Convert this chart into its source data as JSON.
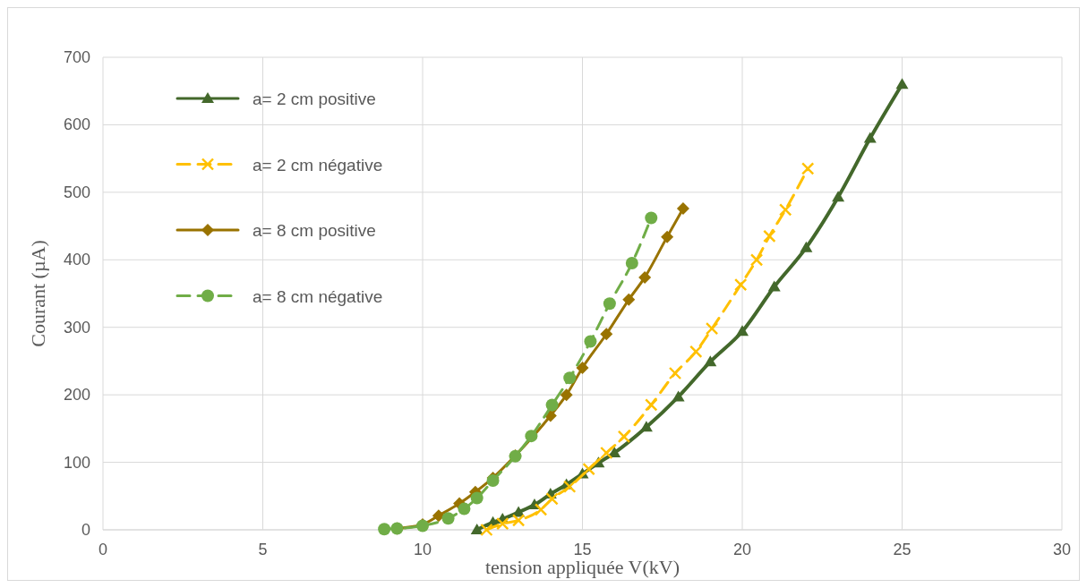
{
  "chart_data": {
    "type": "line",
    "xlabel": "tension appliquée V(kV)",
    "ylabel": "Courant (µA)",
    "xlim": [
      0,
      30
    ],
    "xticks": [
      0,
      5,
      10,
      15,
      20,
      25,
      30
    ],
    "ylim": [
      0,
      700
    ],
    "yticks": [
      0,
      100,
      200,
      300,
      400,
      500,
      600,
      700
    ],
    "grid": true,
    "legend": "top left",
    "series": [
      {
        "name": "a= 2 cm positive",
        "color": "#43682b",
        "marker": "triangle",
        "line_style": "solid",
        "x": [
          11.7,
          12.2,
          12.5,
          13,
          13.5,
          14,
          14.5,
          15,
          15.5,
          16,
          17,
          18,
          19,
          20,
          21,
          22,
          23,
          24,
          25
        ],
        "values": [
          0,
          11,
          16,
          26,
          37,
          53,
          67,
          83,
          99,
          114,
          152,
          197,
          249,
          294,
          360,
          418,
          493,
          580,
          660
        ]
      },
      {
        "name": "a= 2 cm négative",
        "color": "#ffc000",
        "marker": "cross",
        "line_style": "dashed",
        "x": [
          12,
          12.5,
          13,
          13.7,
          14.05,
          14.6,
          15.2,
          15.75,
          16.3,
          17.15,
          17.9,
          18.55,
          19.05,
          19.95,
          20.45,
          20.85,
          21.35,
          22.05
        ],
        "values": [
          0,
          9,
          14,
          30,
          46,
          64,
          90,
          114,
          138,
          185,
          232,
          264,
          298,
          363,
          400,
          435,
          474,
          535
        ]
      },
      {
        "name": "a= 8 cm positive",
        "color": "#997300",
        "marker": "diamond",
        "line_style": "solid",
        "x": [
          9.2,
          10,
          10.5,
          11.15,
          11.65,
          12.2,
          12.9,
          14,
          14.5,
          15,
          15.75,
          16.45,
          16.95,
          17.65,
          18.15
        ],
        "values": [
          2,
          8,
          21,
          39,
          56,
          77,
          110,
          169,
          200,
          240,
          290,
          341,
          374,
          434,
          476
        ]
      },
      {
        "name": "a= 8 cm négative",
        "color": "#70ad47",
        "marker": "circle",
        "line_style": "dashed",
        "x": [
          8.8,
          9.2,
          10,
          10.8,
          11.3,
          11.7,
          12.2,
          12.9,
          13.4,
          14.05,
          14.6,
          15.25,
          15.85,
          16.55,
          17.15
        ],
        "values": [
          1,
          2,
          6,
          17,
          31,
          47,
          73,
          109,
          139,
          185,
          225,
          279,
          335,
          395,
          462
        ]
      }
    ]
  }
}
